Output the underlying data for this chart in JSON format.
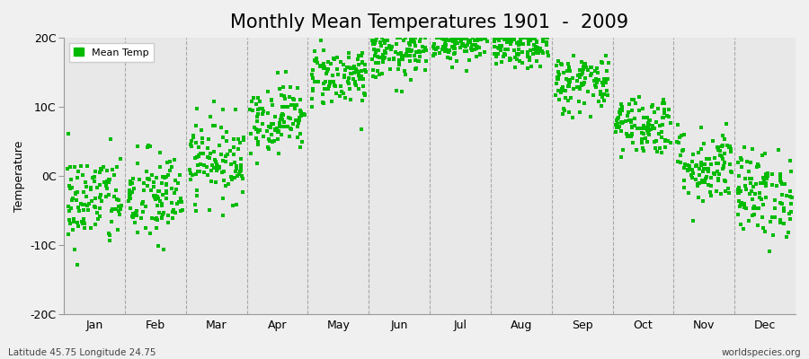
{
  "title": "Monthly Mean Temperatures 1901  -  2009",
  "ylabel": "Temperature",
  "xlabel_bottom_left": "Latitude 45.75 Longitude 24.75",
  "xlabel_bottom_right": "worldspecies.org",
  "ylim": [
    -20,
    20
  ],
  "yticks": [
    -20,
    -10,
    0,
    10,
    20
  ],
  "ytick_labels": [
    "-20C",
    "-10C",
    "0C",
    "10C",
    "20C"
  ],
  "months": [
    "Jan",
    "Feb",
    "Mar",
    "Apr",
    "May",
    "Jun",
    "Jul",
    "Aug",
    "Sep",
    "Oct",
    "Nov",
    "Dec"
  ],
  "dot_color": "#00bb00",
  "fig_bg_color": "#f0f0f0",
  "plot_bg_color": "#e8e8e8",
  "dashed_line_color": "#999999",
  "title_fontsize": 15,
  "legend_label": "Mean Temp",
  "n_years": 109,
  "monthly_means": [
    -3.5,
    -3.2,
    2.5,
    8.5,
    14.5,
    17.5,
    19.5,
    18.5,
    13.5,
    7.5,
    1.5,
    -2.5
  ],
  "monthly_stds": [
    3.5,
    3.5,
    3.0,
    2.5,
    2.2,
    1.8,
    1.5,
    1.5,
    2.2,
    2.2,
    2.8,
    3.2
  ]
}
